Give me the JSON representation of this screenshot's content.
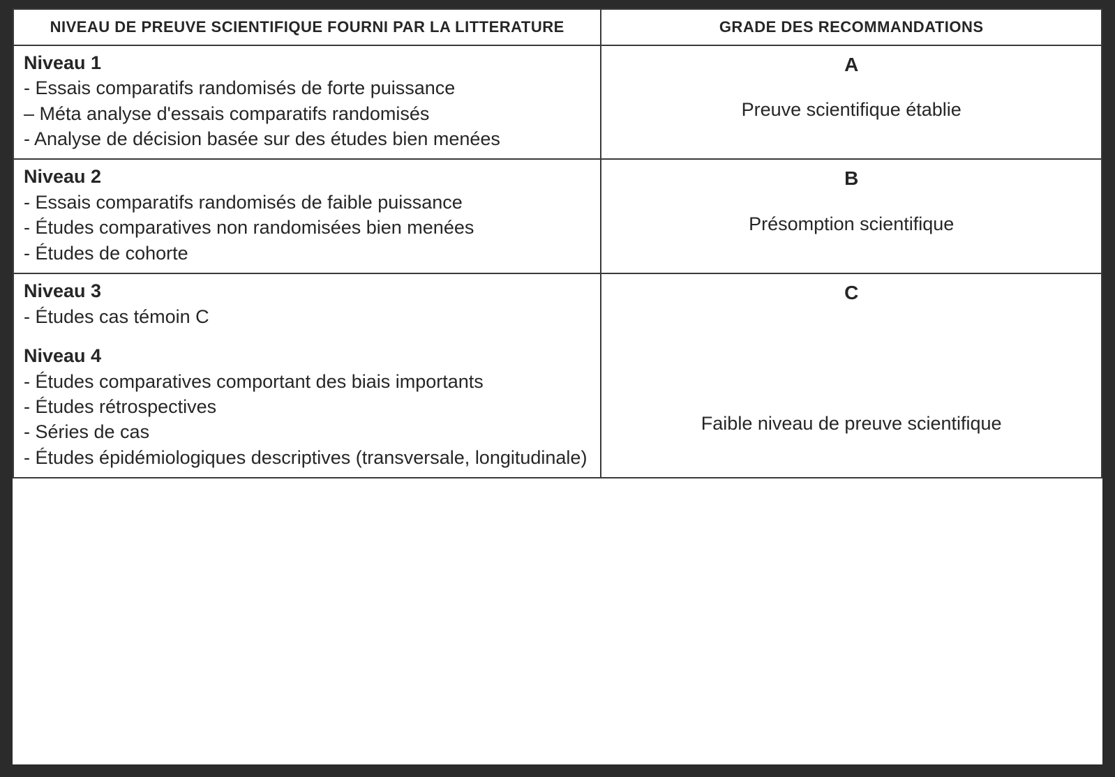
{
  "table": {
    "border_color": "#3a3a3a",
    "background_color": "#ffffff",
    "page_background": "#2b2b2b",
    "text_color": "#262626",
    "header_fontsize": 22,
    "body_fontsize": 27,
    "col_widths_pct": [
      54,
      46
    ],
    "headers": {
      "left": "NIVEAU DE PREUVE SCIENTIFIQUE FOURNI PAR LA LITTERATURE",
      "right": "GRADE DES RECOMMANDATIONS"
    },
    "rows": [
      {
        "levels": [
          {
            "title": "Niveau 1",
            "items": [
              "- Essais comparatifs randomisés de forte puissance",
              "– Méta analyse d'essais comparatifs randomisés",
              "- Analyse de décision basée sur des études bien menées"
            ]
          }
        ],
        "grade_letter": "A",
        "grade_desc": "Preuve scientifique établie"
      },
      {
        "levels": [
          {
            "title": "Niveau 2",
            "items": [
              "- Essais comparatifs randomisés de faible puissance",
              "- Études comparatives non randomisées bien menées",
              "- Études de cohorte"
            ]
          }
        ],
        "grade_letter": "B",
        "grade_desc": "Présomption scientifique"
      },
      {
        "levels": [
          {
            "title": "Niveau 3",
            "items": [
              "- Études cas témoin C"
            ]
          },
          {
            "title": "Niveau 4",
            "items": [
              "- Études comparatives comportant des biais importants",
              "- Études rétrospectives",
              "- Séries de cas",
              "- Études épidémiologiques descriptives (transversale, longitudinale)"
            ]
          }
        ],
        "grade_letter": "C",
        "grade_desc": "Faible niveau de preuve scientifique"
      }
    ]
  }
}
